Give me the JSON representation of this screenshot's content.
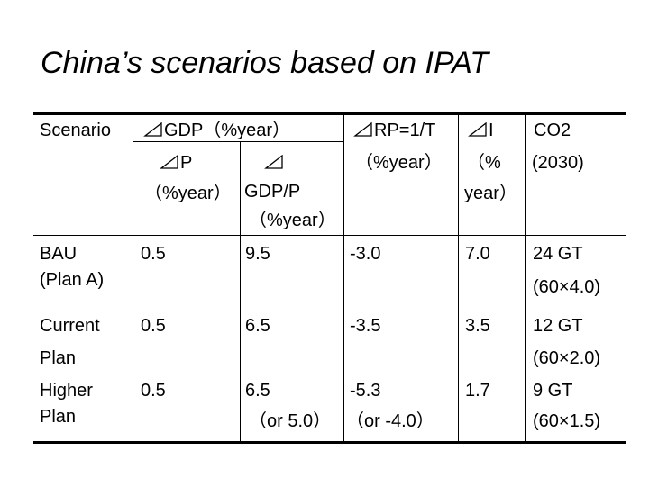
{
  "title": "China’s scenarios based on IPAT",
  "delta_icon": "triangle-delta-icon",
  "header": {
    "scenario": "Scenario",
    "gdp": "GDP（%year）",
    "dp": "P",
    "dp_unit": "（%year）",
    "dgdp_p": "GDP/P",
    "dgdp_p_unit": "（%year）",
    "rp": "RP=1/T",
    "rp_unit": "（%year）",
    "di": "I",
    "di_unit_1": "（%",
    "di_unit_2": "year）",
    "co2": "CO2",
    "co2_year": "(2030)"
  },
  "rows": [
    {
      "scenario_1": "BAU",
      "scenario_2": "(Plan A)",
      "p": "0.5",
      "gdp_p": "9.5",
      "gdp_p_alt": "",
      "rp": "-3.0",
      "rp_alt": "",
      "i": "7.0",
      "co2": "24 GT",
      "co2_calc": "(60×4.0)"
    },
    {
      "scenario_1": "Current",
      "scenario_2": "Plan",
      "p": "0.5",
      "gdp_p": "6.5",
      "gdp_p_alt": "",
      "rp": "-3.5",
      "rp_alt": "",
      "i": "3.5",
      "co2": "12 GT",
      "co2_calc": "(60×2.0)"
    },
    {
      "scenario_1": "Higher",
      "scenario_2": "Plan",
      "p": "0.5",
      "gdp_p": "6.5",
      "gdp_p_alt": "（or 5.0）",
      "rp": "-5.3",
      "rp_alt": "（or -4.0）",
      "i": "1.7",
      "co2": "9 GT",
      "co2_calc": "(60×1.5)"
    }
  ]
}
